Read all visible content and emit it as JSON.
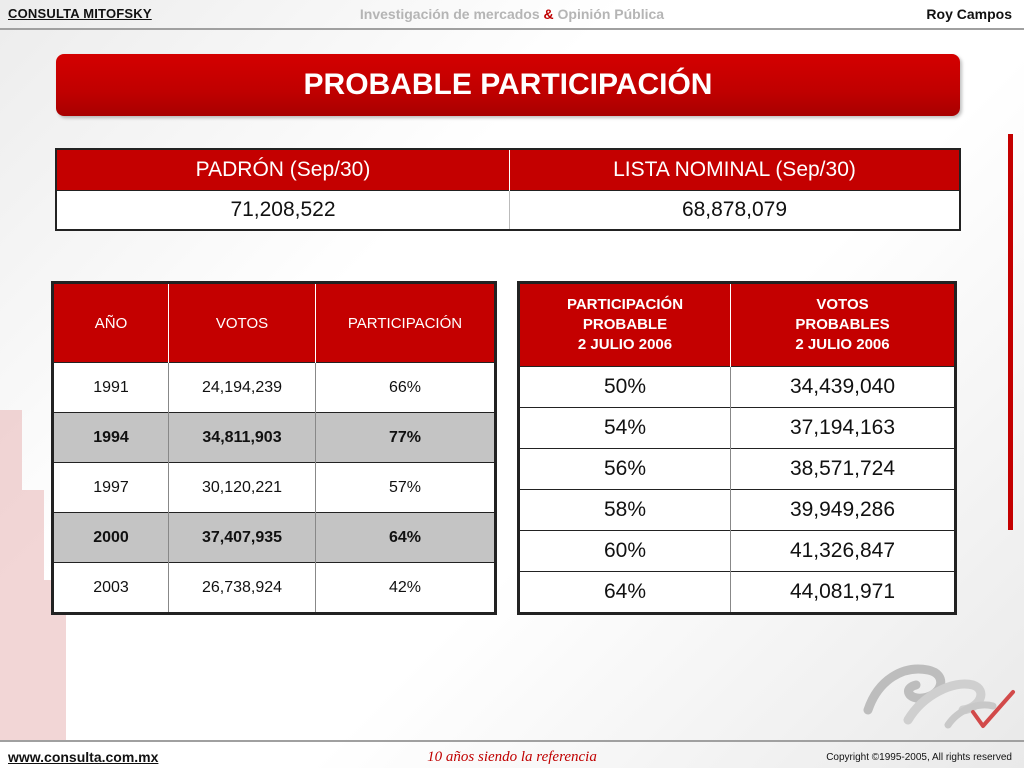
{
  "header": {
    "brand": "CONSULTA MITOFSKY",
    "tagline_a": "Investigación de mercados",
    "tagline_amp": "&",
    "tagline_b": "Opinión Pública",
    "author": "Roy Campos"
  },
  "title": "PROBABLE PARTICIPACIÓN",
  "padron": {
    "headers": [
      "PADRÓN (Sep/30)",
      "LISTA NOMINAL (Sep/30)"
    ],
    "values": [
      "71,208,522",
      "68,878,079"
    ]
  },
  "historico": {
    "headers": [
      "AÑO",
      "VOTOS",
      "PARTICIPACIÓN"
    ],
    "rows": [
      [
        "1991",
        "24,194,239",
        "66%"
      ],
      [
        "1994",
        "34,811,903",
        "77%"
      ],
      [
        "1997",
        "30,120,221",
        "57%"
      ],
      [
        "2000",
        "37,407,935",
        "64%"
      ],
      [
        "2003",
        "26,738,924",
        "42%"
      ]
    ]
  },
  "proyeccion": {
    "headers": [
      [
        "PARTICIPACIÓN",
        "PROBABLE",
        "2 JULIO 2006"
      ],
      [
        "VOTOS",
        "PROBABLES",
        "2 JULIO 2006"
      ]
    ],
    "rows": [
      [
        "50%",
        "34,439,040"
      ],
      [
        "54%",
        "37,194,163"
      ],
      [
        "56%",
        "38,571,724"
      ],
      [
        "58%",
        "39,949,286"
      ],
      [
        "60%",
        "41,326,847"
      ],
      [
        "64%",
        "44,081,971"
      ]
    ]
  },
  "footer": {
    "url": "www.consulta.com.mx",
    "tagline": "10 años siendo la referencia",
    "copyright": "Copyright ©1995-2005, All rights reserved"
  },
  "colors": {
    "accent": "#c40000",
    "shade": "#c4c4c4"
  }
}
